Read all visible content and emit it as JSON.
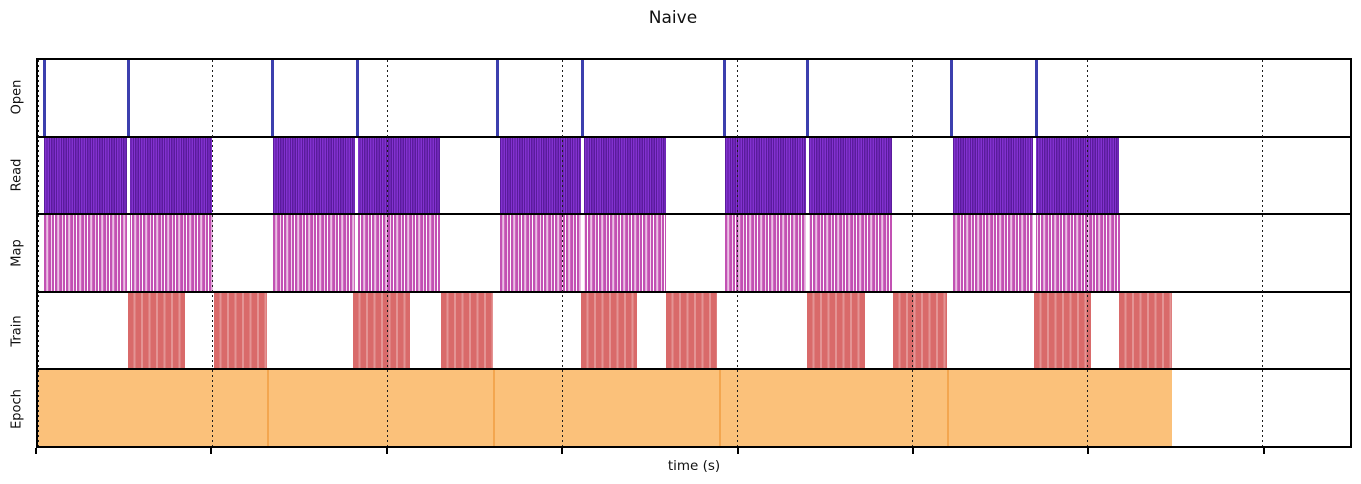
{
  "figure": {
    "title": "Naive",
    "xlabel": "time (s)"
  },
  "colors": {
    "background": "#ffffff",
    "axes_and_grid": "#000000",
    "open_line": "#3c3fae",
    "read_dark": "#5a1b9c",
    "read_light": "#8231cf",
    "map_line": "#c251b3",
    "train_fill": "#d96a6a",
    "train_stripe": "#e49494",
    "epoch_fill": "#fbc17a",
    "epoch_separator": "#f3a64f"
  },
  "chart_data": {
    "type": "timeline",
    "title": "Naive",
    "xlabel": "time (s)",
    "x_axis": {
      "tick_labels_visible": false,
      "note": "positions given as percent of visible time axis (no numeric tick labels shown)",
      "ticks_pct": [
        0,
        13.33,
        26.66,
        39.99,
        53.31,
        66.64,
        79.97,
        93.3
      ],
      "gridline_style": "dotted",
      "gridlines_pct": [
        0,
        13.33,
        26.66,
        39.99,
        53.31,
        66.64,
        79.97,
        93.3
      ]
    },
    "tracks": [
      {
        "label": "Open",
        "kind": "instant",
        "color": "#3c3fae",
        "events_pct": [
          0.46,
          6.91,
          17.9,
          24.32,
          35.03,
          41.49,
          52.36,
          58.66,
          69.6,
          76.1
        ]
      },
      {
        "label": "Read",
        "kind": "barcode",
        "css": "read-bar",
        "blocks_pct": [
          [
            0.46,
            13.3
          ],
          [
            17.93,
            30.62
          ],
          [
            35.18,
            47.87
          ],
          [
            52.4,
            65.12
          ],
          [
            69.76,
            82.37
          ]
        ],
        "gaps_pct": [
          6.91,
          24.28,
          41.49,
          58.66,
          75.99
        ]
      },
      {
        "label": "Map",
        "kind": "barcode",
        "css": "map-bar",
        "blocks_pct": [
          [
            0.46,
            13.37
          ],
          [
            17.93,
            30.62
          ],
          [
            35.18,
            47.87
          ],
          [
            52.4,
            65.12
          ],
          [
            69.76,
            82.45
          ]
        ],
        "gaps_pct": [
          6.91,
          24.28,
          41.49,
          58.66,
          75.99
        ]
      },
      {
        "label": "Train",
        "kind": "blocks",
        "css": "train-bar",
        "blocks_pct": [
          [
            6.84,
            11.17
          ],
          [
            13.45,
            17.44
          ],
          [
            24.01,
            28.34
          ],
          [
            30.7,
            34.65
          ],
          [
            41.41,
            45.67
          ],
          [
            47.87,
            51.79
          ],
          [
            58.59,
            63.0
          ],
          [
            65.2,
            69.3
          ],
          [
            75.91,
            80.24
          ],
          [
            82.37,
            86.47
          ]
        ]
      },
      {
        "label": "Epoch",
        "kind": "segments",
        "css": "epoch-seg",
        "segments_pct": [
          [
            0,
            17.48
          ],
          [
            17.48,
            34.65
          ],
          [
            34.65,
            51.9
          ],
          [
            51.9,
            69.3
          ],
          [
            69.3,
            86.47
          ]
        ]
      }
    ]
  }
}
